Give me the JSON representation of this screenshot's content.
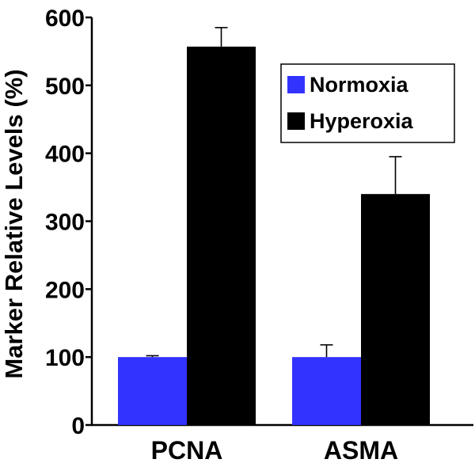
{
  "chart_data": {
    "type": "bar",
    "categories": [
      "PCNA",
      "ASMA"
    ],
    "series": [
      {
        "name": "Normoxia",
        "values": [
          100,
          100
        ],
        "errors": [
          2,
          18
        ],
        "color": "#3333ff"
      },
      {
        "name": "Hyperoxia",
        "values": [
          557,
          340
        ],
        "errors": [
          28,
          55
        ],
        "color": "#000000"
      }
    ],
    "ylabel": "Marker Relative Levels (%)",
    "xlabel": "",
    "ylim": [
      0,
      600
    ],
    "yticks": [
      0,
      100,
      200,
      300,
      400,
      500,
      600
    ],
    "legend_position": "top-right",
    "grid": false
  }
}
